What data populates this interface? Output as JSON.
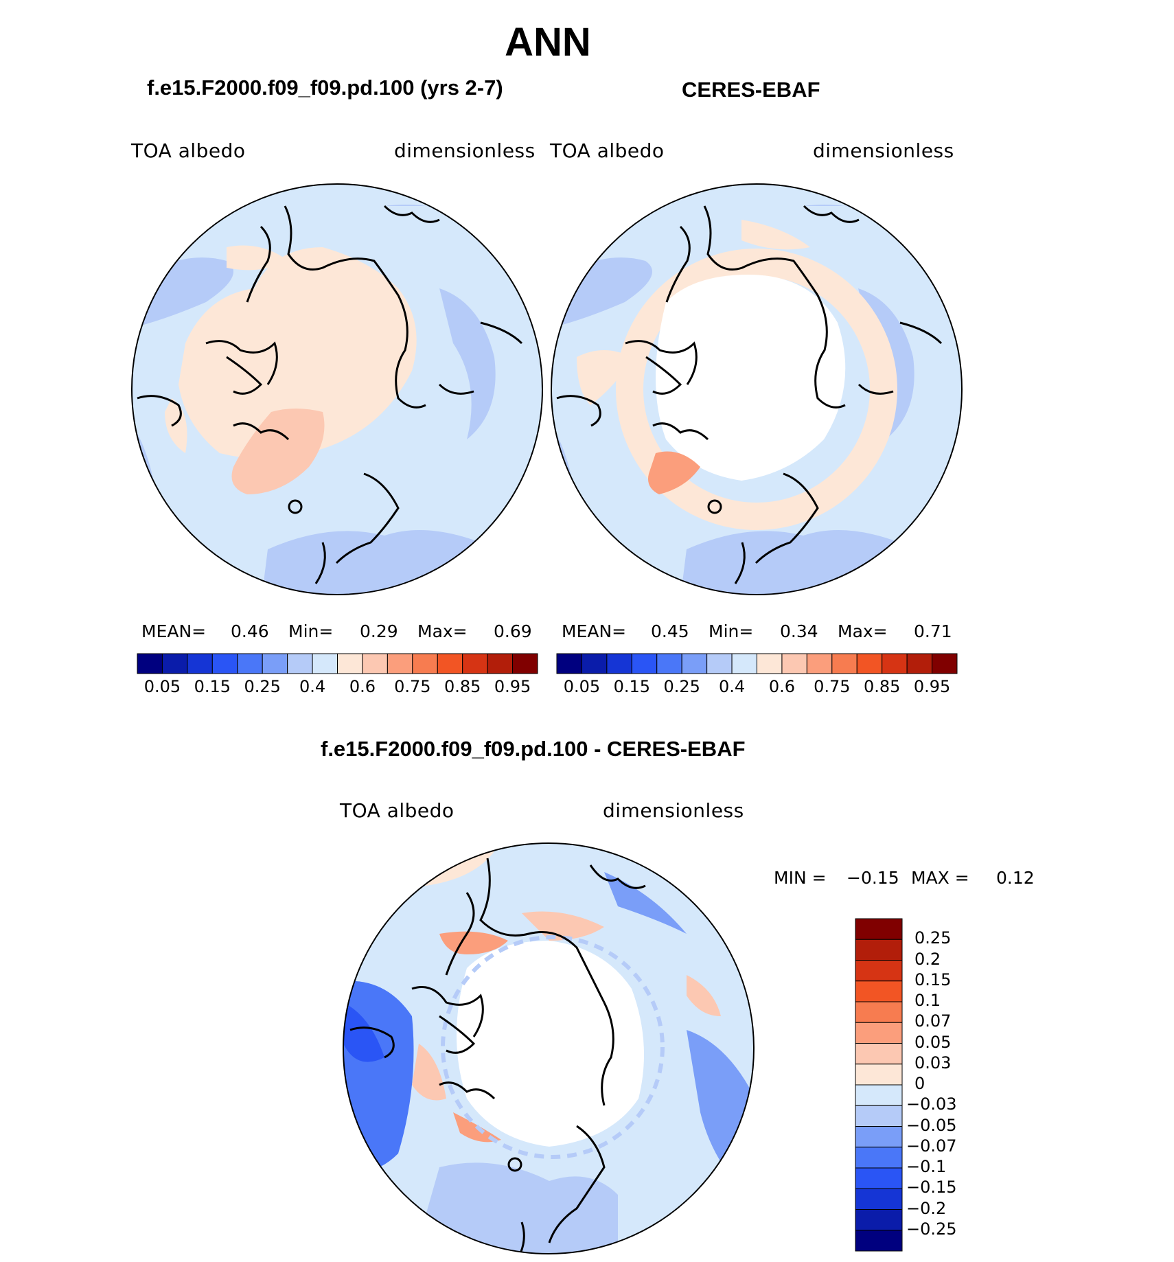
{
  "title": "ANN",
  "panels": [
    {
      "id": "model",
      "title": "f.e15.F2000.f09_f09.pd.100 (yrs 2-7)",
      "variable": "TOA  albedo",
      "units": "dimensionless",
      "stats": {
        "mean_label": "MEAN=",
        "mean": "0.46",
        "min_label": "Min=",
        "min": "0.29",
        "max_label": "Max=",
        "max": "0.69"
      }
    },
    {
      "id": "obs",
      "title": "CERES-EBAF",
      "variable": "TOA  albedo",
      "units": "dimensionless",
      "stats": {
        "mean_label": "MEAN=",
        "mean": "0.45",
        "min_label": "Min=",
        "min": "0.34",
        "max_label": "Max=",
        "max": "0.71"
      }
    }
  ],
  "diff_panel": {
    "title": "f.e15.F2000.f09_f09.pd.100 - CERES-EBAF",
    "variable": "TOA  albedo",
    "units": "dimensionless",
    "stats": {
      "min_label": "MIN =",
      "min": "−0.15",
      "max_label": "MAX =",
      "max": "0.12"
    }
  },
  "colorbar_abs": {
    "colors": [
      "#00007f",
      "#0a1caa",
      "#1535d5",
      "#2a55f5",
      "#4a77f8",
      "#7a9ef8",
      "#b5cbf8",
      "#d5e8fb",
      "#fde7d7",
      "#fcc8b2",
      "#fb9e7c",
      "#f77c50",
      "#f25524",
      "#d63414",
      "#b21e0a",
      "#800000"
    ],
    "tick_labels": [
      "0.05",
      "0.15",
      "0.25",
      "0.4",
      "0.6",
      "0.75",
      "0.85",
      "0.95"
    ]
  },
  "colorbar_diff": {
    "colors_top_to_bottom": [
      "#800000",
      "#b21e0a",
      "#d63414",
      "#f25524",
      "#f77c50",
      "#fb9e7c",
      "#fcc8b2",
      "#fde7d7",
      "#d5e8fb",
      "#b5cbf8",
      "#7a9ef8",
      "#4a77f8",
      "#2a55f5",
      "#1535d5",
      "#0a1caa",
      "#00007f"
    ],
    "tick_labels_top_to_bottom": [
      "0.25",
      "0.2",
      "0.15",
      "0.1",
      "0.07",
      "0.05",
      "0.03",
      "0",
      "−0.03",
      "−0.05",
      "−0.07",
      "−0.1",
      "−0.15",
      "−0.2",
      "−0.25"
    ]
  },
  "chart_data": [
    {
      "type": "map",
      "projection": "polar-stereographic-north",
      "variable": "TOA albedo",
      "units": "dimensionless",
      "mean": 0.46,
      "min": 0.29,
      "max": 0.69,
      "levels": [
        0.05,
        0.1,
        0.15,
        0.2,
        0.25,
        0.3,
        0.35,
        0.4,
        0.5,
        0.6,
        0.7,
        0.75,
        0.8,
        0.85,
        0.9,
        0.95
      ]
    },
    {
      "type": "map",
      "projection": "polar-stereographic-north",
      "variable": "TOA albedo",
      "units": "dimensionless",
      "mean": 0.45,
      "min": 0.34,
      "max": 0.71,
      "levels": [
        0.05,
        0.1,
        0.15,
        0.2,
        0.25,
        0.3,
        0.35,
        0.4,
        0.5,
        0.6,
        0.7,
        0.75,
        0.8,
        0.85,
        0.9,
        0.95
      ]
    },
    {
      "type": "map",
      "projection": "polar-stereographic-north",
      "variable": "TOA albedo",
      "units": "dimensionless",
      "min": -0.15,
      "max": 0.12,
      "levels": [
        -0.25,
        -0.2,
        -0.15,
        -0.1,
        -0.07,
        -0.05,
        -0.03,
        0,
        0.03,
        0.05,
        0.07,
        0.1,
        0.15,
        0.2,
        0.25
      ]
    }
  ]
}
